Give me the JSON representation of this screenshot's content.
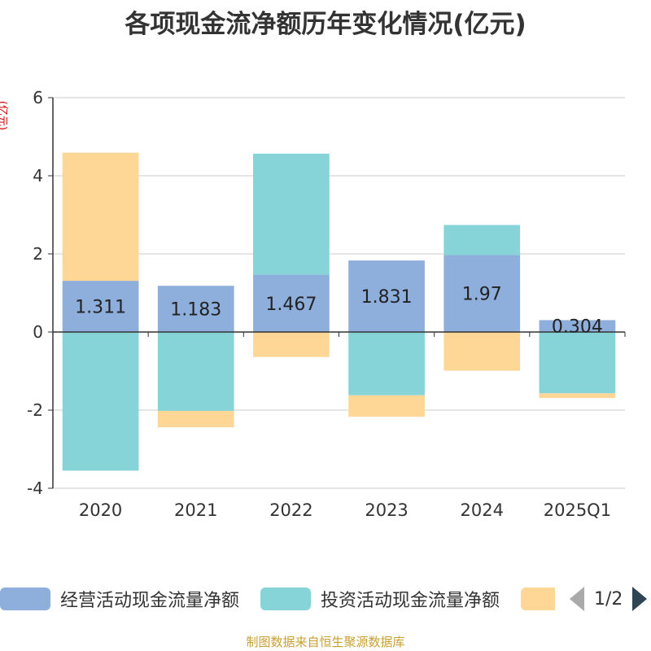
{
  "chart_data": {
    "type": "bar",
    "stacked": true,
    "title": "各项现金流净额历年变化情况(亿元)",
    "ylabel": "(亿元)",
    "categories": [
      "2020",
      "2021",
      "2022",
      "2023",
      "2024",
      "2025Q1"
    ],
    "ylim": [
      -4,
      6
    ],
    "yticks": [
      6,
      4,
      2,
      0,
      -2,
      -4
    ],
    "grid": true,
    "legend_position": "bottom",
    "series": [
      {
        "name": "经营活动现金流量净额",
        "color": "#8eaedb",
        "values": [
          1.311,
          1.183,
          1.467,
          1.831,
          1.97,
          0.304
        ],
        "labels": [
          "1.311",
          "1.183",
          "1.467",
          "1.831",
          "1.97",
          "0.304"
        ]
      },
      {
        "name": "投资活动现金流量净额",
        "color": "#86d4d8",
        "values": [
          -3.55,
          -2.02,
          3.1,
          -1.62,
          0.77,
          -1.57
        ]
      },
      {
        "name": "",
        "color": "#fed797",
        "values": [
          3.28,
          -0.42,
          -0.64,
          -0.55,
          -0.99,
          -0.12
        ]
      }
    ]
  },
  "legend": {
    "items": [
      {
        "label": "经营活动现金流量净额",
        "color": "#8eaedb"
      },
      {
        "label": "投资活动现金流量净额",
        "color": "#86d4d8"
      },
      {
        "label": "",
        "color": "#fed797"
      }
    ],
    "page": "1/2"
  },
  "source": "制图数据来自恒生聚源数据库"
}
